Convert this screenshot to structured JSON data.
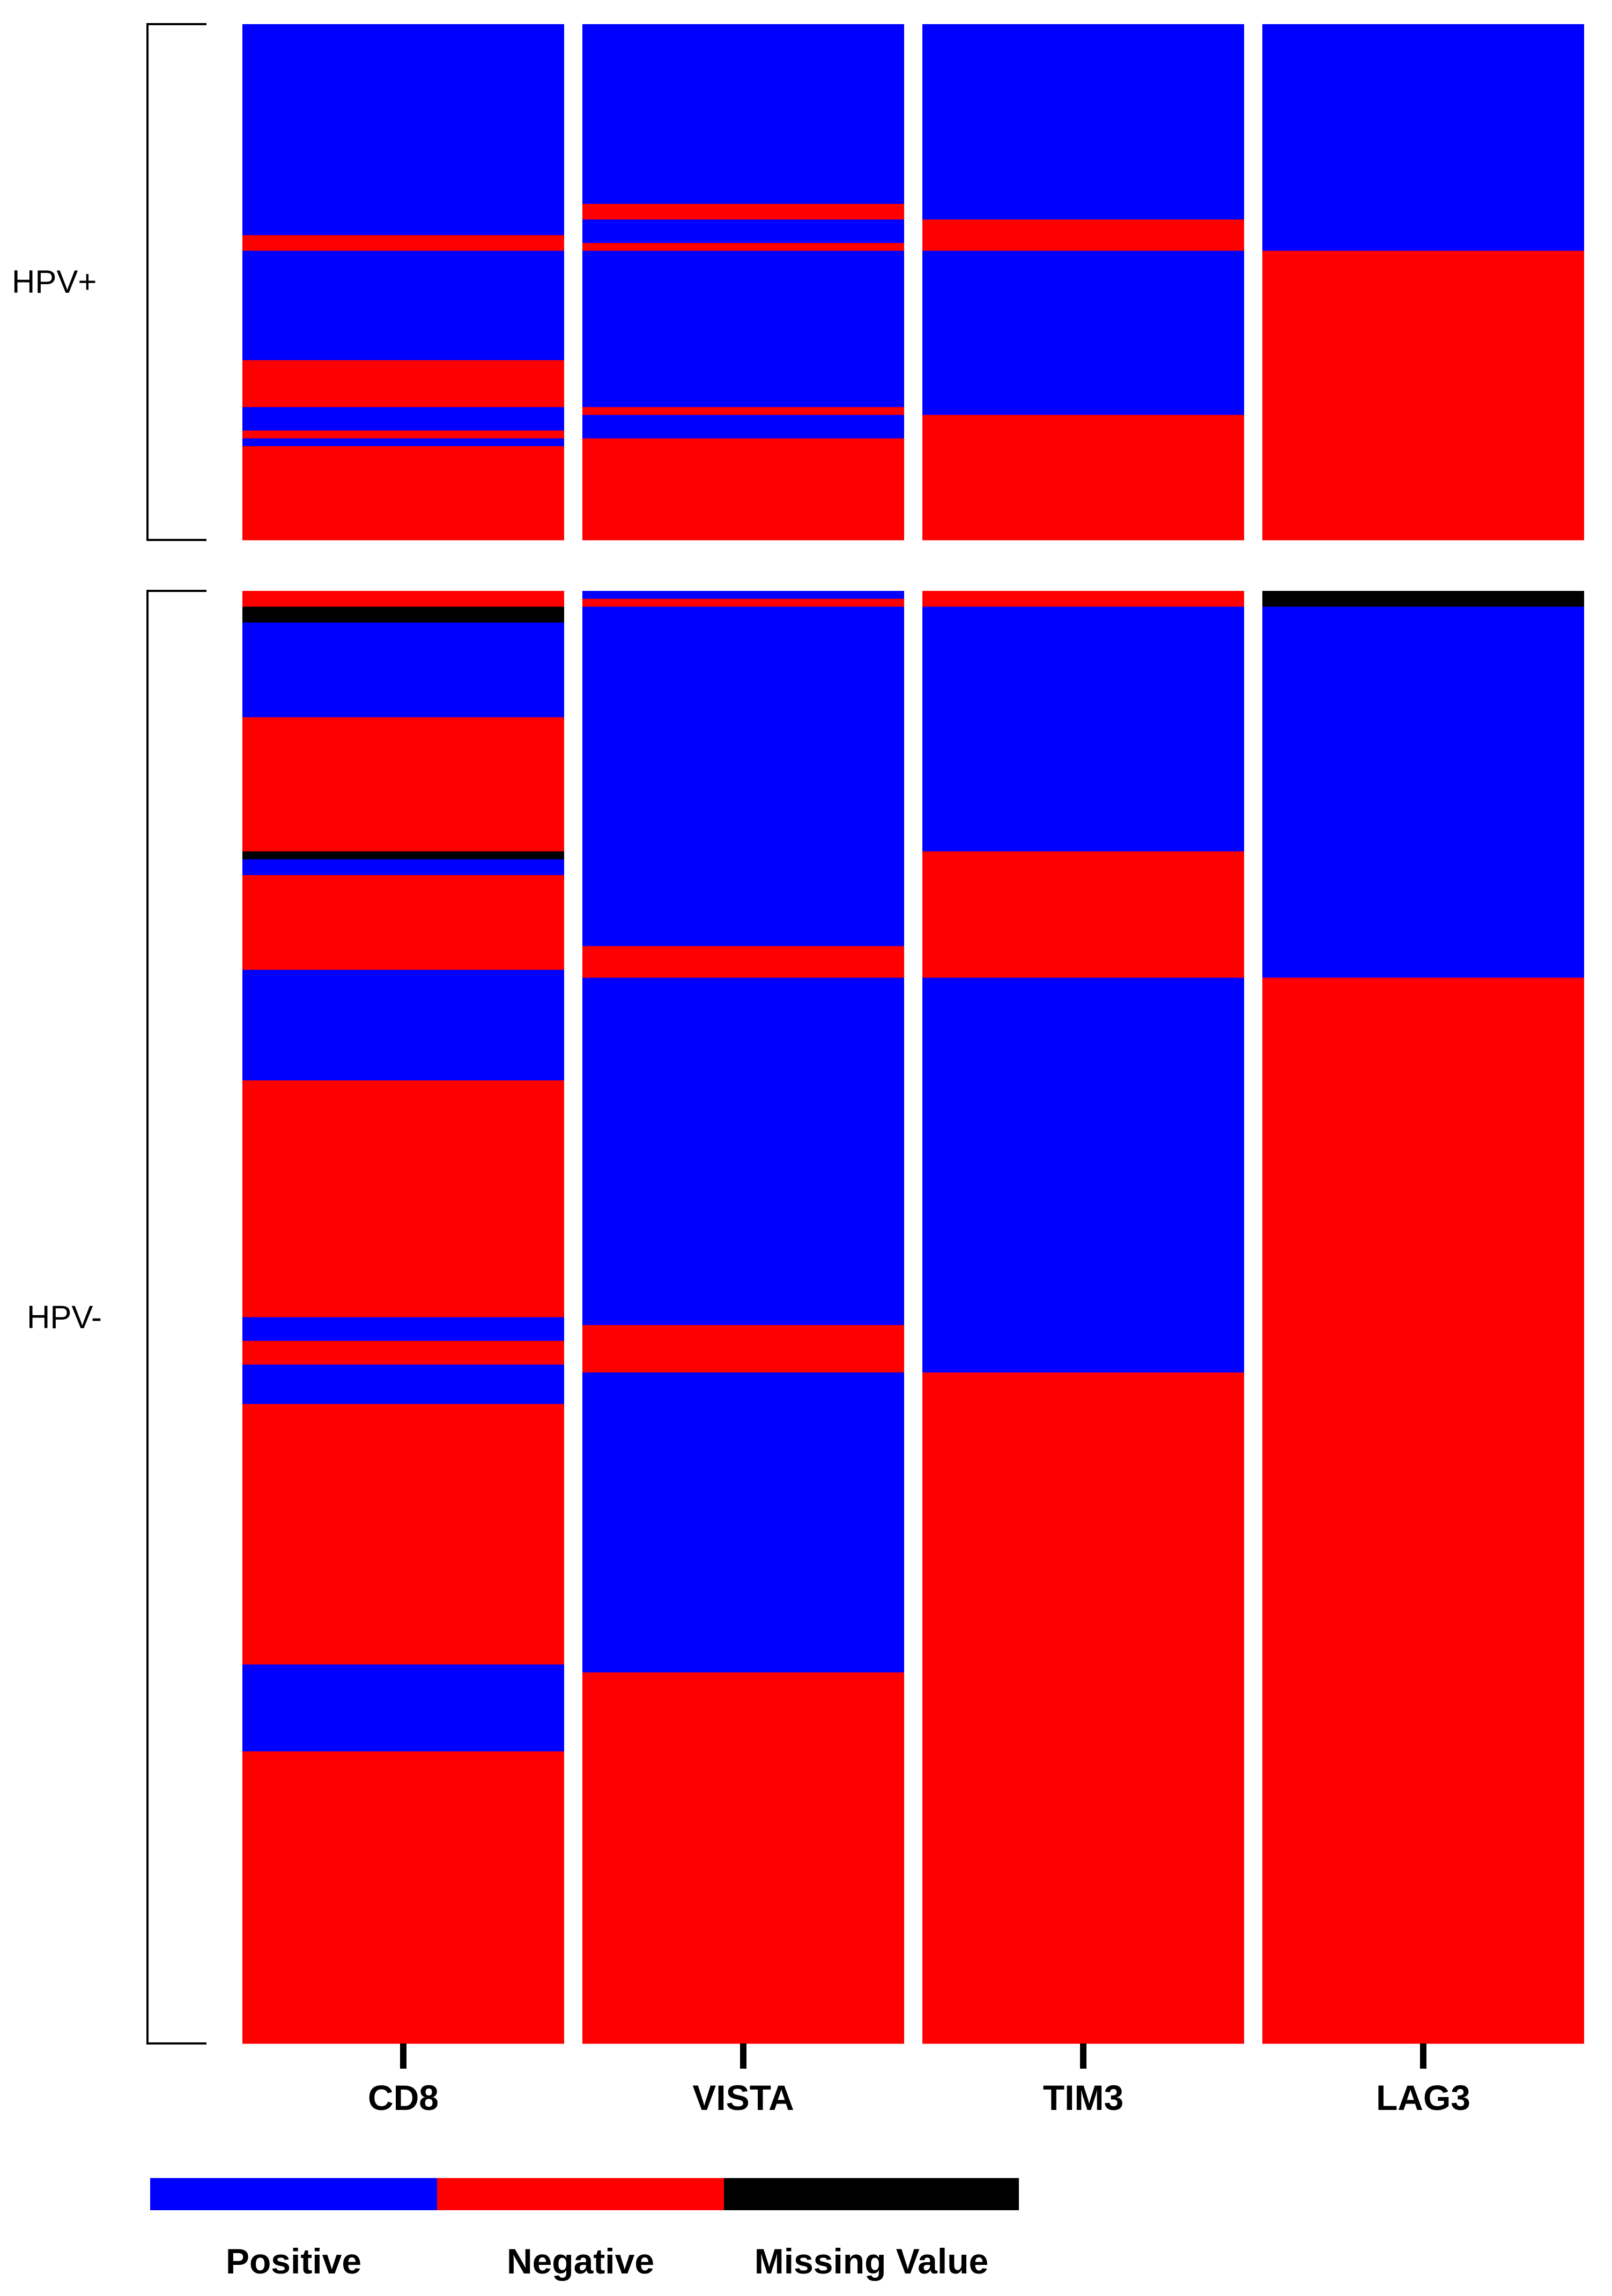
{
  "chart_data": {
    "type": "heatmap",
    "title": "",
    "xlabel": "",
    "ylabel": "",
    "columns": [
      "CD8",
      "VISTA",
      "TIM3",
      "LAG3"
    ],
    "groups": [
      {
        "label": "HPV+",
        "rows": 66,
        "segments": {
          "CD8": [
            [
              "Positive",
              27
            ],
            [
              "Negative",
              2
            ],
            [
              "Positive",
              14
            ],
            [
              "Negative",
              6
            ],
            [
              "Positive",
              3
            ],
            [
              "Negative",
              1
            ],
            [
              "Positive",
              1
            ],
            [
              "Negative",
              12
            ]
          ],
          "VISTA": [
            [
              "Positive",
              23
            ],
            [
              "Negative",
              2
            ],
            [
              "Positive",
              3
            ],
            [
              "Negative",
              1
            ],
            [
              "Positive",
              20
            ],
            [
              "Negative",
              1
            ],
            [
              "Positive",
              3
            ],
            [
              "Negative",
              13
            ]
          ],
          "TIM3": [
            [
              "Positive",
              25
            ],
            [
              "Negative",
              4
            ],
            [
              "Positive",
              21
            ],
            [
              "Negative",
              16
            ]
          ],
          "LAG3": [
            [
              "Positive",
              29
            ],
            [
              "Negative",
              37
            ]
          ]
        }
      },
      {
        "label": "HPV-",
        "rows": 184,
        "segments": {
          "CD8": [
            [
              "Negative",
              2
            ],
            [
              "Missing Value",
              2
            ],
            [
              "Positive",
              12
            ],
            [
              "Negative",
              17
            ],
            [
              "Missing Value",
              1
            ],
            [
              "Positive",
              2
            ],
            [
              "Negative",
              12
            ],
            [
              "Positive",
              14
            ],
            [
              "Negative",
              30
            ],
            [
              "Positive",
              3
            ],
            [
              "Negative",
              3
            ],
            [
              "Positive",
              5
            ],
            [
              "Negative",
              33
            ],
            [
              "Positive",
              11
            ],
            [
              "Negative",
              37
            ]
          ],
          "VISTA": [
            [
              "Positive",
              1
            ],
            [
              "Negative",
              1
            ],
            [
              "Positive",
              43
            ],
            [
              "Negative",
              4
            ],
            [
              "Positive",
              44
            ],
            [
              "Negative",
              6
            ],
            [
              "Positive",
              38
            ],
            [
              "Negative",
              47
            ]
          ],
          "TIM3": [
            [
              "Negative",
              2
            ],
            [
              "Positive",
              31
            ],
            [
              "Negative",
              16
            ],
            [
              "Positive",
              50
            ],
            [
              "Negative",
              85
            ]
          ],
          "LAG3": [
            [
              "Missing Value",
              2
            ],
            [
              "Positive",
              47
            ],
            [
              "Negative",
              135
            ]
          ]
        }
      }
    ],
    "legend": {
      "placement": "bottom-left",
      "items": [
        {
          "label": "Positive",
          "color": "#0000ff"
        },
        {
          "label": "Negative",
          "color": "#ff0000"
        },
        {
          "label": "Missing Value",
          "color": "#000000"
        }
      ]
    }
  }
}
